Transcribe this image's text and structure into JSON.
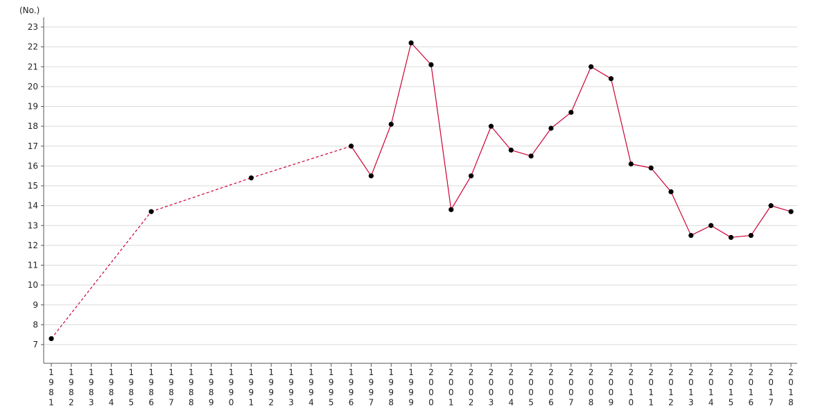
{
  "chart_data": {
    "type": "line",
    "unit_label": "(No.)",
    "x": [
      1981,
      1982,
      1983,
      1984,
      1985,
      1986,
      1987,
      1988,
      1989,
      1990,
      1991,
      1992,
      1993,
      1994,
      1995,
      1996,
      1997,
      1998,
      1999,
      2000,
      2001,
      2002,
      2003,
      2004,
      2005,
      2006,
      2007,
      2008,
      2009,
      2010,
      2011,
      2012,
      2013,
      2014,
      2015,
      2016,
      2017,
      2018
    ],
    "series": [
      {
        "color": "#cc0033",
        "points": [
          {
            "x": 1981,
            "y": 7.3
          },
          {
            "x": 1986,
            "y": 13.7
          },
          {
            "x": 1991,
            "y": 15.4
          },
          {
            "x": 1996,
            "y": 17.0
          },
          {
            "x": 1997,
            "y": 15.5
          },
          {
            "x": 1998,
            "y": 18.1
          },
          {
            "x": 1999,
            "y": 22.2
          },
          {
            "x": 2000,
            "y": 21.1
          },
          {
            "x": 2001,
            "y": 13.8
          },
          {
            "x": 2002,
            "y": 15.5
          },
          {
            "x": 2003,
            "y": 18.0
          },
          {
            "x": 2004,
            "y": 16.8
          },
          {
            "x": 2005,
            "y": 16.5
          },
          {
            "x": 2006,
            "y": 17.9
          },
          {
            "x": 2007,
            "y": 18.7
          },
          {
            "x": 2008,
            "y": 21.0
          },
          {
            "x": 2009,
            "y": 20.4
          },
          {
            "x": 2010,
            "y": 16.1
          },
          {
            "x": 2011,
            "y": 15.9
          },
          {
            "x": 2012,
            "y": 14.7
          },
          {
            "x": 2013,
            "y": 12.5
          },
          {
            "x": 2014,
            "y": 13.0
          },
          {
            "x": 2015,
            "y": 12.4
          },
          {
            "x": 2016,
            "y": 12.5
          },
          {
            "x": 2017,
            "y": 14.0
          },
          {
            "x": 2018,
            "y": 13.7
          }
        ],
        "dashed_until_x": 1996
      }
    ],
    "ylim": [
      6.5,
      23
    ],
    "yticks": [
      7,
      8,
      9,
      10,
      11,
      12,
      13,
      14,
      15,
      16,
      17,
      18,
      19,
      20,
      21,
      22,
      23
    ],
    "grid": true,
    "legend": "none"
  }
}
